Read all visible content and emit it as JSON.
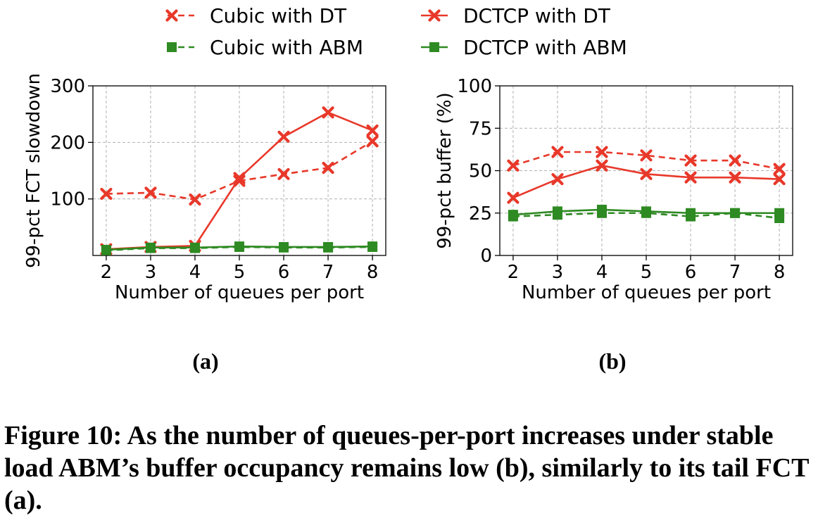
{
  "legend": [
    {
      "label": "Cubic with DT",
      "color": "#e8382a",
      "marker": "x",
      "dashed": true
    },
    {
      "label": "DCTCP with DT",
      "color": "#e8382a",
      "marker": "x",
      "dashed": false
    },
    {
      "label": "Cubic with ABM",
      "color": "#2e8a22",
      "marker": "square",
      "dashed": true
    },
    {
      "label": "DCTCP with ABM",
      "color": "#2e8a22",
      "marker": "square",
      "dashed": false
    }
  ],
  "panel_labels": [
    "(a)",
    "(b)"
  ],
  "caption": "Figure 10: As the number of queues-per-port increases under stable load ABM’s buffer occupancy remains low (b), similarly to its tail FCT (a).",
  "chart_data": [
    {
      "type": "line",
      "xlabel": "Number of queues per port",
      "ylabel": "99-pct FCT slowdown",
      "x": [
        2,
        3,
        4,
        5,
        6,
        7,
        8
      ],
      "xlim": [
        1.7,
        8.3
      ],
      "ylim": [
        0,
        300
      ],
      "yticks": [
        100,
        200,
        300
      ],
      "grid": true,
      "series": [
        {
          "name": "Cubic with DT",
          "values": [
            109,
            111,
            99,
            132,
            144,
            155,
            202
          ]
        },
        {
          "name": "DCTCP with DT",
          "values": [
            11,
            15,
            17,
            137,
            210,
            253,
            221
          ]
        },
        {
          "name": "Cubic with ABM",
          "values": [
            9,
            13,
            13,
            15,
            14,
            14,
            15
          ]
        },
        {
          "name": "DCTCP with ABM",
          "values": [
            10,
            14,
            14,
            16,
            15,
            15,
            16
          ]
        }
      ]
    },
    {
      "type": "line",
      "xlabel": "Number of queues per port",
      "ylabel": "99-pct buffer (%)",
      "x": [
        2,
        3,
        4,
        5,
        6,
        7,
        8
      ],
      "xlim": [
        1.7,
        8.3
      ],
      "ylim": [
        0,
        100
      ],
      "yticks": [
        0,
        25,
        50,
        75,
        100
      ],
      "grid": true,
      "series": [
        {
          "name": "Cubic with DT",
          "values": [
            53,
            61,
            61,
            59,
            56,
            56,
            51
          ]
        },
        {
          "name": "DCTCP with DT",
          "values": [
            34,
            45,
            53,
            48,
            46,
            46,
            45
          ]
        },
        {
          "name": "Cubic with ABM",
          "values": [
            23,
            24,
            25,
            25,
            23,
            25,
            22
          ]
        },
        {
          "name": "DCTCP with ABM",
          "values": [
            24,
            26,
            27,
            26,
            25,
            25,
            25
          ]
        }
      ]
    }
  ]
}
